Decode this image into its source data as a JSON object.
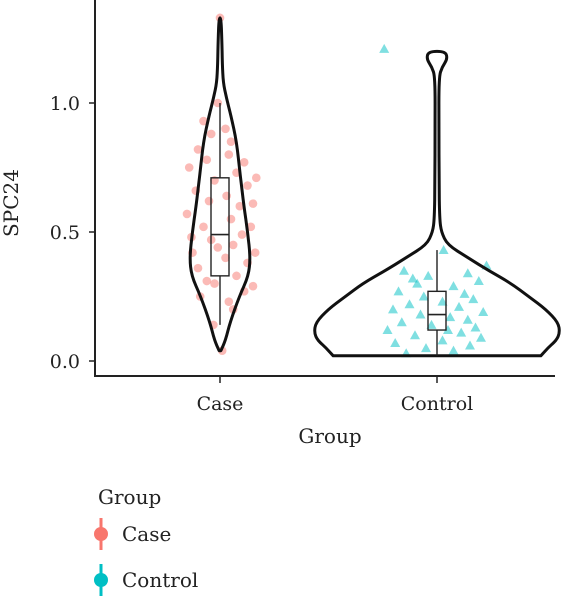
{
  "chart_data": {
    "type": "violin",
    "title": "",
    "xlabel": "Group",
    "ylabel": "SPC24",
    "ylim": [
      -0.05,
      1.4
    ],
    "yticks": [
      "0.0",
      "0.5",
      "1.0"
    ],
    "categories": [
      "Case",
      "Control"
    ],
    "grid": false,
    "legend": {
      "title": "Group",
      "placement": "bottom-left",
      "entries": [
        "Case",
        "Control"
      ]
    },
    "series": [
      {
        "name": "Case",
        "color": "#f8766d",
        "marker": "circle",
        "box": {
          "min": 0.14,
          "q1": 0.33,
          "median": 0.49,
          "q3": 0.71,
          "max": 1.0
        },
        "violin_profile": [
          [
            0.04,
            0.01
          ],
          [
            0.08,
            0.06
          ],
          [
            0.15,
            0.11
          ],
          [
            0.25,
            0.21
          ],
          [
            0.33,
            0.31
          ],
          [
            0.4,
            0.33
          ],
          [
            0.5,
            0.3
          ],
          [
            0.6,
            0.26
          ],
          [
            0.72,
            0.22
          ],
          [
            0.85,
            0.18
          ],
          [
            0.95,
            0.12
          ],
          [
            1.02,
            0.07
          ],
          [
            1.08,
            0.035
          ],
          [
            1.15,
            0.025
          ],
          [
            1.25,
            0.02
          ],
          [
            1.33,
            0.01
          ]
        ],
        "points": [
          [
            -0.18,
            0.25
          ],
          [
            -0.12,
            0.31
          ],
          [
            0.08,
            0.23
          ],
          [
            0.22,
            0.27
          ],
          [
            -0.05,
            0.3
          ],
          [
            0.15,
            0.33
          ],
          [
            0.3,
            0.29
          ],
          [
            -0.2,
            0.36
          ],
          [
            0.05,
            0.4
          ],
          [
            0.25,
            0.38
          ],
          [
            -0.25,
            0.42
          ],
          [
            0.12,
            0.45
          ],
          [
            -0.08,
            0.47
          ],
          [
            0.2,
            0.49
          ],
          [
            0.32,
            0.42
          ],
          [
            -0.15,
            0.52
          ],
          [
            0.1,
            0.55
          ],
          [
            0.28,
            0.52
          ],
          [
            -0.3,
            0.57
          ],
          [
            0.18,
            0.6
          ],
          [
            -0.1,
            0.62
          ],
          [
            0.06,
            0.64
          ],
          [
            -0.22,
            0.66
          ],
          [
            0.25,
            0.68
          ],
          [
            -0.05,
            0.7
          ],
          [
            0.33,
            0.71
          ],
          [
            0.15,
            0.73
          ],
          [
            -0.28,
            0.75
          ],
          [
            0.22,
            0.77
          ],
          [
            -0.12,
            0.78
          ],
          [
            0.08,
            0.8
          ],
          [
            -0.2,
            0.82
          ],
          [
            0.1,
            0.85
          ],
          [
            -0.08,
            0.88
          ],
          [
            0.05,
            0.9
          ],
          [
            -0.15,
            0.93
          ],
          [
            -0.02,
            1.0
          ],
          [
            0.0,
            1.33
          ],
          [
            0.02,
            0.04
          ],
          [
            -0.06,
            0.14
          ],
          [
            0.12,
            0.2
          ],
          [
            -0.26,
            0.48
          ],
          [
            0.3,
            0.61
          ],
          [
            -0.02,
            0.44
          ]
        ]
      },
      {
        "name": "Control",
        "color": "#00bfc4",
        "marker": "triangle",
        "box": {
          "min": 0.02,
          "q1": 0.12,
          "median": 0.18,
          "q3": 0.27,
          "max": 0.43
        },
        "violin_profile": [
          [
            0.02,
            0.6
          ],
          [
            0.05,
            0.64
          ],
          [
            0.08,
            0.69
          ],
          [
            0.11,
            0.71
          ],
          [
            0.15,
            0.7
          ],
          [
            0.2,
            0.63
          ],
          [
            0.25,
            0.53
          ],
          [
            0.3,
            0.43
          ],
          [
            0.35,
            0.3
          ],
          [
            0.4,
            0.18
          ],
          [
            0.45,
            0.06
          ],
          [
            0.5,
            0.025
          ],
          [
            0.55,
            0.015
          ],
          [
            0.7,
            0.012
          ],
          [
            0.9,
            0.011
          ],
          [
            1.1,
            0.011
          ],
          [
            1.14,
            0.03
          ],
          [
            1.17,
            0.06
          ],
          [
            1.2,
            0.05
          ]
        ],
        "points": [
          [
            -0.28,
            0.03
          ],
          [
            -0.1,
            0.05
          ],
          [
            0.15,
            0.04
          ],
          [
            0.3,
            0.06
          ],
          [
            -0.38,
            0.07
          ],
          [
            0.05,
            0.08
          ],
          [
            0.4,
            0.09
          ],
          [
            -0.2,
            0.1
          ],
          [
            0.22,
            0.11
          ],
          [
            -0.45,
            0.12
          ],
          [
            0.1,
            0.12
          ],
          [
            0.35,
            0.13
          ],
          [
            -0.05,
            0.14
          ],
          [
            -0.32,
            0.15
          ],
          [
            0.28,
            0.16
          ],
          [
            0.12,
            0.17
          ],
          [
            -0.15,
            0.18
          ],
          [
            0.42,
            0.19
          ],
          [
            -0.4,
            0.2
          ],
          [
            0.2,
            0.21
          ],
          [
            -0.25,
            0.22
          ],
          [
            0.05,
            0.23
          ],
          [
            0.33,
            0.24
          ],
          [
            -0.12,
            0.25
          ],
          [
            0.25,
            0.26
          ],
          [
            -0.35,
            0.27
          ],
          [
            0.15,
            0.29
          ],
          [
            -0.18,
            0.3
          ],
          [
            0.38,
            0.31
          ],
          [
            -0.08,
            0.33
          ],
          [
            0.28,
            0.34
          ],
          [
            -0.3,
            0.35
          ],
          [
            0.45,
            0.37
          ],
          [
            0.06,
            0.43
          ],
          [
            -0.48,
            1.21
          ],
          [
            -0.22,
            0.32
          ]
        ]
      }
    ]
  }
}
